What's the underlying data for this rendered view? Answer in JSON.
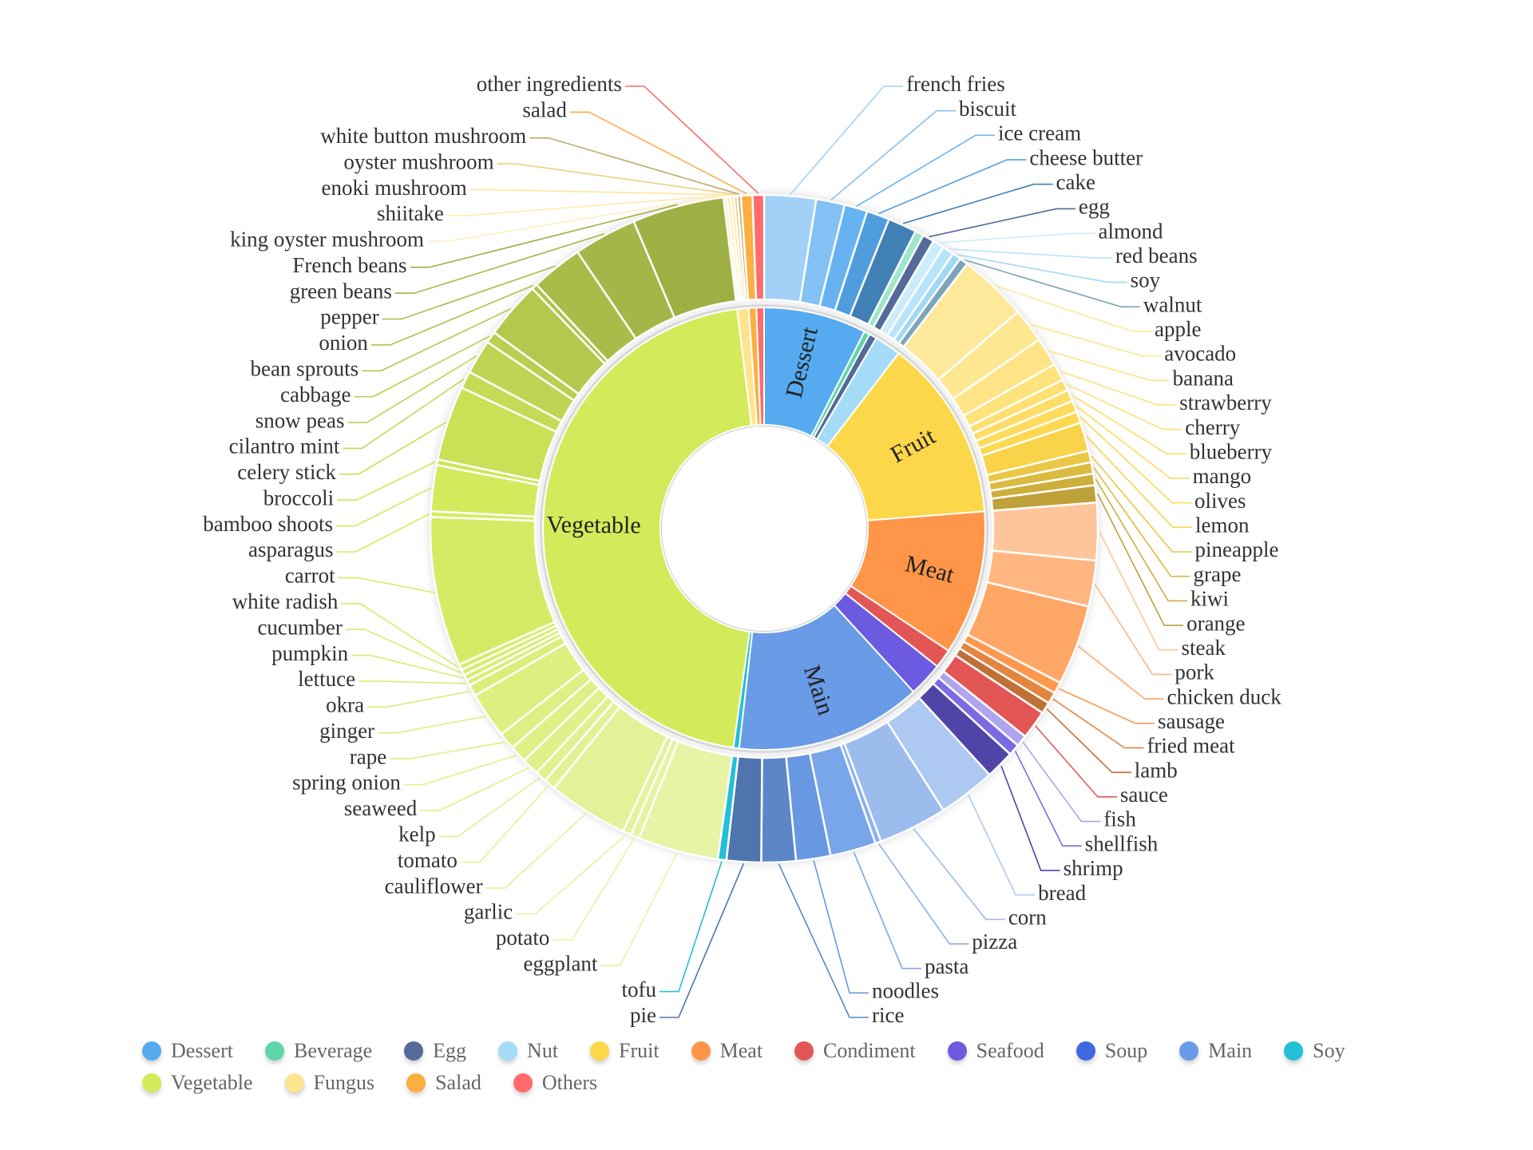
{
  "chart_data": {
    "type": "sunburst",
    "title": "",
    "categories": [
      {
        "name": "Dessert",
        "color": "#56aaf0",
        "children": [
          {
            "name": "french fries",
            "value": 9
          },
          {
            "name": "biscuit",
            "value": 5
          },
          {
            "name": "ice cream",
            "value": 4
          },
          {
            "name": "cheese butter",
            "value": 4
          },
          {
            "name": "cake",
            "value": 5
          }
        ]
      },
      {
        "name": "Beverage",
        "color": "#5ed6a8",
        "value": 1.5,
        "children": []
      },
      {
        "name": "Egg",
        "color": "#536a9a",
        "children": [
          {
            "name": "egg",
            "value": 2
          }
        ]
      },
      {
        "name": "Nut",
        "color": "#a4dcf8",
        "children": [
          {
            "name": "almond",
            "value": 2
          },
          {
            "name": "red beans",
            "value": 2
          },
          {
            "name": "soy",
            "value": 1.5
          },
          {
            "name": "walnut",
            "value": 1.5
          }
        ]
      },
      {
        "name": "Fruit",
        "color": "#fdd74a",
        "children": [
          {
            "name": "apple",
            "value": 12
          },
          {
            "name": "avocado",
            "value": 6
          },
          {
            "name": "banana",
            "value": 5
          },
          {
            "name": "strawberry",
            "value": 3
          },
          {
            "name": "cherry",
            "value": 2
          },
          {
            "name": "blueberry",
            "value": 2
          },
          {
            "name": "mango",
            "value": 2
          },
          {
            "name": "olives",
            "value": 2
          },
          {
            "name": "lemon",
            "value": 5
          },
          {
            "name": "pineapple",
            "value": 2
          },
          {
            "name": "grape",
            "value": 2
          },
          {
            "name": "kiwi",
            "value": 2
          },
          {
            "name": "orange",
            "value": 3
          }
        ]
      },
      {
        "name": "Meat",
        "color": "#ff9548",
        "children": [
          {
            "name": "steak",
            "value": 10
          },
          {
            "name": "pork",
            "value": 8
          },
          {
            "name": "chicken duck",
            "value": 14
          },
          {
            "name": "sausage",
            "value": 2
          },
          {
            "name": "fried meat",
            "value": 2
          },
          {
            "name": "lamb",
            "value": 2
          }
        ]
      },
      {
        "name": "Condiment",
        "color": "#e35656",
        "children": [
          {
            "name": "sauce",
            "value": 5
          }
        ]
      },
      {
        "name": "Seafood",
        "color": "#6c5be0",
        "children": [
          {
            "name": "fish",
            "value": 2
          },
          {
            "name": "shellfish",
            "value": 2
          },
          {
            "name": "shrimp",
            "value": 5
          }
        ]
      },
      {
        "name": "Soup",
        "color": "#3d68e0",
        "children": []
      },
      {
        "name": "Main",
        "color": "#6a9be6",
        "children": [
          {
            "name": "bread",
            "value": 10
          },
          {
            "name": "corn",
            "value": 12
          },
          {
            "name": "pizza",
            "value": 1
          },
          {
            "name": "pasta",
            "value": 8
          },
          {
            "name": "noodles",
            "value": 6
          },
          {
            "name": "rice",
            "value": 6
          },
          {
            "name": "pie",
            "value": 6
          }
        ]
      },
      {
        "name": "Soy",
        "color": "#23bfd6",
        "children": [
          {
            "name": "tofu",
            "value": 1.5
          }
        ]
      },
      {
        "name": "Vegetable",
        "color": "#d3ea5b",
        "children": [
          {
            "name": "eggplant",
            "value": 14
          },
          {
            "name": "potato",
            "value": 1.5
          },
          {
            "name": "garlic",
            "value": 1.5
          },
          {
            "name": "cauliflower",
            "value": 14
          },
          {
            "name": "tomato",
            "value": 2
          },
          {
            "name": "kelp",
            "value": 2
          },
          {
            "name": "seaweed",
            "value": 3
          },
          {
            "name": "spring onion",
            "value": 3
          },
          {
            "name": "rape",
            "value": 3
          },
          {
            "name": "ginger",
            "value": 8
          },
          {
            "name": "okra",
            "value": 2
          },
          {
            "name": "lettuce",
            "value": 1
          },
          {
            "name": "pumpkin",
            "value": 1
          },
          {
            "name": "cucumber",
            "value": 1
          },
          {
            "name": "white radish",
            "value": 1
          },
          {
            "name": "carrot",
            "value": 26
          },
          {
            "name": "asparagus",
            "value": 1
          },
          {
            "name": "bamboo shoots",
            "value": 8
          },
          {
            "name": "broccoli",
            "value": 1
          },
          {
            "name": "celery stick",
            "value": 13
          },
          {
            "name": "cilantro mint",
            "value": 3
          },
          {
            "name": "snow peas",
            "value": 6
          },
          {
            "name": "cabbage",
            "value": 2
          },
          {
            "name": "bean sprouts",
            "value": 10
          },
          {
            "name": "onion",
            "value": 1
          },
          {
            "name": "pepper",
            "value": 9
          },
          {
            "name": "green beans",
            "value": 11
          },
          {
            "name": "French beans",
            "value": 16
          }
        ]
      },
      {
        "name": "Fungus",
        "color": "#ffe48f",
        "children": [
          {
            "name": "king oyster mushroom",
            "value": 0.6
          },
          {
            "name": "shiitake",
            "value": 0.6
          },
          {
            "name": "enoki mushroom",
            "value": 0.6
          },
          {
            "name": "oyster mushroom",
            "value": 0.6
          },
          {
            "name": "white button mushroom",
            "value": 0.6
          }
        ]
      },
      {
        "name": "Salad",
        "color": "#fdae40",
        "children": [
          {
            "name": "salad",
            "value": 2
          }
        ]
      },
      {
        "name": "Others",
        "color": "#ff6b6b",
        "children": [
          {
            "name": "other ingredients",
            "value": 2
          }
        ]
      }
    ],
    "inner_labels_shown": [
      "Dessert",
      "Fruit",
      "Meat",
      "Main",
      "Vegetable"
    ],
    "legend": {
      "placement": "bottom",
      "rows": [
        [
          "Dessert",
          "Beverage",
          "Egg",
          "Nut",
          "Fruit",
          "Meat",
          "Condiment",
          "Seafood",
          "Soup",
          "Main",
          "Soy"
        ],
        [
          "Vegetable",
          "Fungus",
          "Salad",
          "Others"
        ]
      ]
    }
  }
}
